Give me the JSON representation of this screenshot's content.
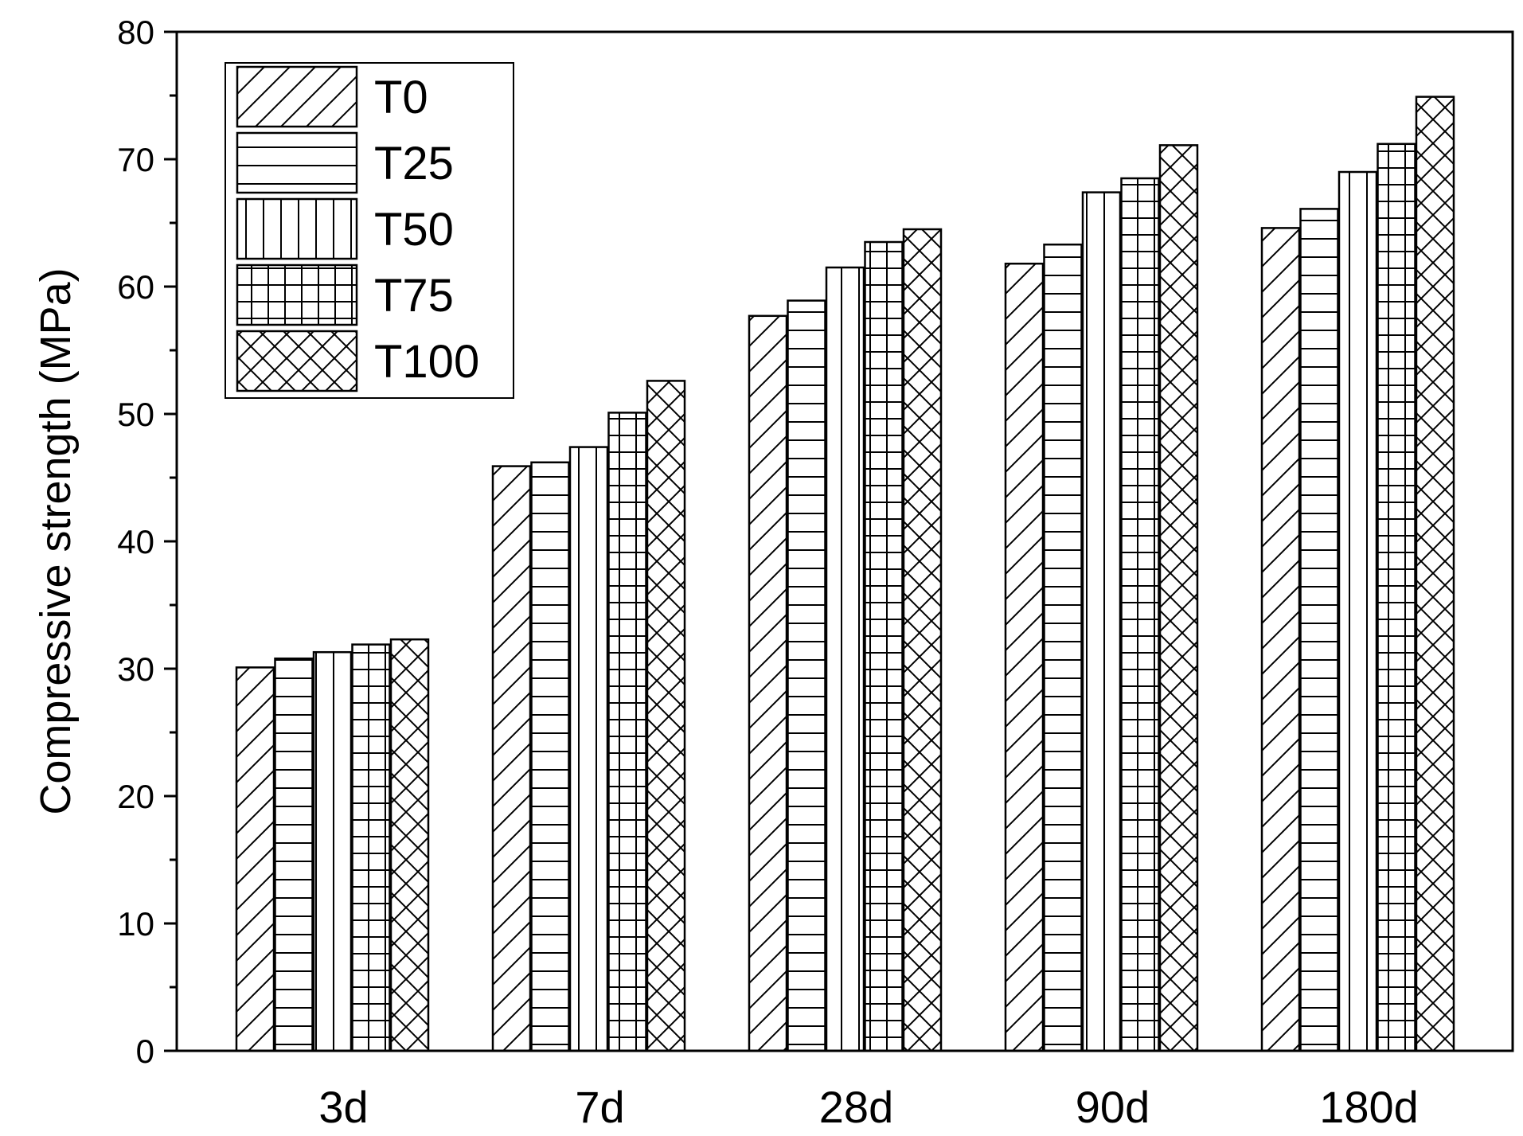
{
  "chart_data": {
    "type": "bar",
    "title": "",
    "xlabel": "",
    "ylabel": "Compressive strength (MPa)",
    "ylim": [
      0,
      80
    ],
    "yticks": [
      0,
      10,
      20,
      30,
      40,
      50,
      60,
      70,
      80
    ],
    "grid": false,
    "legend_position": "top-left",
    "categories": [
      "3d",
      "7d",
      "28d",
      "90d",
      "180d"
    ],
    "series": [
      {
        "name": "T0",
        "pattern": "diagonal",
        "values": [
          30.1,
          45.9,
          57.7,
          61.8,
          64.6
        ]
      },
      {
        "name": "T25",
        "pattern": "horizontal",
        "values": [
          30.8,
          46.2,
          58.9,
          63.3,
          66.1
        ]
      },
      {
        "name": "T50",
        "pattern": "vertical",
        "values": [
          31.3,
          47.4,
          61.5,
          67.4,
          69.0
        ]
      },
      {
        "name": "T75",
        "pattern": "grid",
        "values": [
          31.9,
          50.1,
          63.5,
          68.5,
          71.2
        ]
      },
      {
        "name": "T100",
        "pattern": "crosshatch",
        "values": [
          32.3,
          52.6,
          64.5,
          71.1,
          74.9
        ]
      }
    ],
    "colors": {
      "stroke": "#000000",
      "fill": "#ffffff"
    }
  }
}
